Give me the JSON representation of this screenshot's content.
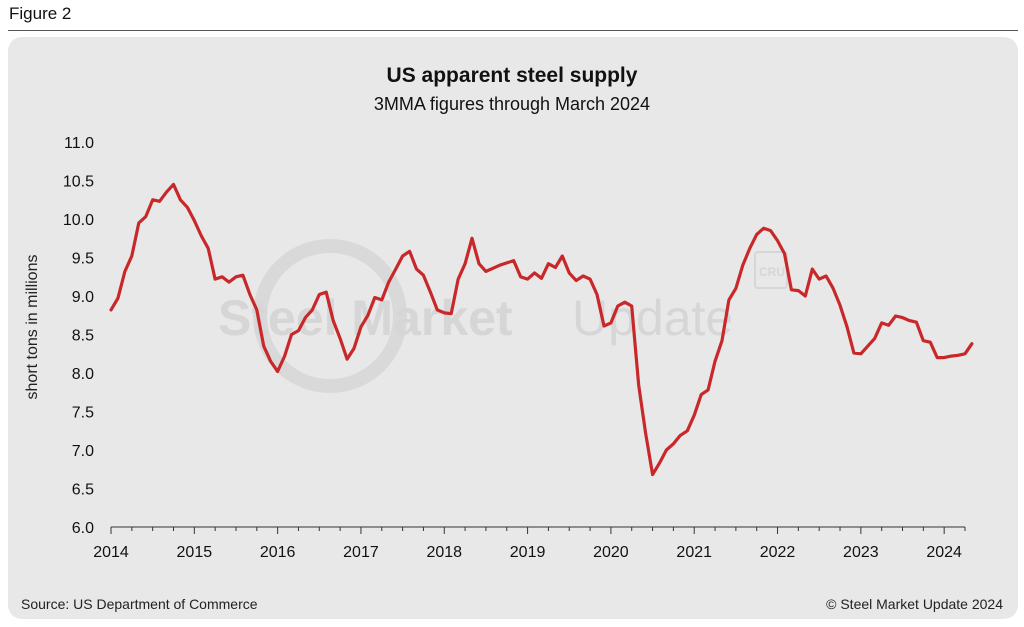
{
  "figure_label": "Figure 2",
  "source": "Source: US Department of Commerce",
  "copyright": "© Steel Market Update 2024",
  "watermark": {
    "bold": "Steel Market",
    "light": "Update",
    "logo": "CRU"
  },
  "colors": {
    "line": "#c8282a",
    "panel": "#e8e8e8",
    "axis": "#333333"
  },
  "chart_data": {
    "type": "line",
    "title": "US apparent steel supply",
    "subtitle": "3MMA figures through March 2024",
    "ylabel": "short tons in millions",
    "xlabel": "",
    "ylim": [
      6.0,
      11.0
    ],
    "xlim": [
      2014.0,
      2024.25
    ],
    "grid": false,
    "y_ticks": [
      "6.0",
      "6.5",
      "7.0",
      "7.5",
      "8.0",
      "8.5",
      "9.0",
      "9.5",
      "10.0",
      "10.5",
      "11.0"
    ],
    "x_ticks": [
      "2014",
      "2015",
      "2016",
      "2017",
      "2018",
      "2019",
      "2020",
      "2021",
      "2022",
      "2023",
      "2024"
    ],
    "series": [
      {
        "values": [
          8.82,
          8.97,
          9.32,
          9.52,
          9.95,
          10.03,
          10.25,
          10.23,
          10.35,
          10.45,
          10.25,
          10.15,
          9.98,
          9.78,
          9.62,
          9.22,
          9.25,
          9.18,
          9.25,
          9.27,
          9.02,
          8.82,
          8.35,
          8.15,
          8.02,
          8.22,
          8.5,
          8.55,
          8.72,
          8.82,
          9.02,
          9.05,
          8.68,
          8.45,
          8.18,
          8.32,
          8.6,
          8.75,
          8.98,
          8.95,
          9.18,
          9.35,
          9.52,
          9.58,
          9.35,
          9.27,
          9.05,
          8.82,
          8.78,
          8.77,
          9.22,
          9.42,
          9.75,
          9.42,
          9.32,
          9.36,
          9.4,
          9.43,
          9.46,
          9.25,
          9.22,
          9.3,
          9.23,
          9.42,
          9.37,
          9.52,
          9.3,
          9.2,
          9.26,
          9.22,
          9.02,
          8.61,
          8.65,
          8.87,
          8.92,
          8.87,
          7.84,
          7.22,
          6.68,
          6.83,
          7.0,
          7.08,
          7.19,
          7.25,
          7.45,
          7.72,
          7.78,
          8.15,
          8.42,
          8.95,
          9.1,
          9.4,
          9.62,
          9.8,
          9.88,
          9.85,
          9.72,
          9.55,
          9.08,
          9.07,
          9.0,
          9.35,
          9.22,
          9.26,
          9.1,
          8.88,
          8.6,
          8.26,
          8.25,
          8.35,
          8.45,
          8.65,
          8.62,
          8.74,
          8.72,
          8.68,
          8.66,
          8.42,
          8.4,
          8.2,
          8.2,
          8.22,
          8.23,
          8.25,
          8.38
        ]
      }
    ]
  }
}
